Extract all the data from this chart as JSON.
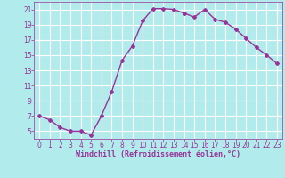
{
  "x": [
    0,
    1,
    2,
    3,
    4,
    5,
    6,
    7,
    8,
    9,
    10,
    11,
    12,
    13,
    14,
    15,
    16,
    17,
    18,
    19,
    20,
    21,
    22,
    23
  ],
  "y": [
    7.0,
    6.5,
    5.5,
    5.0,
    5.0,
    4.5,
    7.0,
    10.2,
    14.3,
    16.2,
    19.5,
    21.1,
    21.1,
    21.0,
    20.5,
    20.0,
    21.0,
    19.7,
    19.3,
    18.4,
    17.2,
    16.0,
    15.0,
    13.9
  ],
  "line_color": "#993399",
  "marker": "D",
  "marker_size": 2.0,
  "bg_color": "#b2ebeb",
  "grid_color": "#ffffff",
  "xlabel": "Windchill (Refroidissement éolien,°C)",
  "xlabel_color": "#993399",
  "tick_color": "#993399",
  "ylim": [
    4,
    22
  ],
  "xlim": [
    -0.5,
    23.5
  ],
  "yticks": [
    5,
    7,
    9,
    11,
    13,
    15,
    17,
    19,
    21
  ],
  "xticks": [
    0,
    1,
    2,
    3,
    4,
    5,
    6,
    7,
    8,
    9,
    10,
    11,
    12,
    13,
    14,
    15,
    16,
    17,
    18,
    19,
    20,
    21,
    22,
    23
  ],
  "font_size_ticks": 5.5,
  "font_size_xlabel": 6.0,
  "line_width": 1.0
}
